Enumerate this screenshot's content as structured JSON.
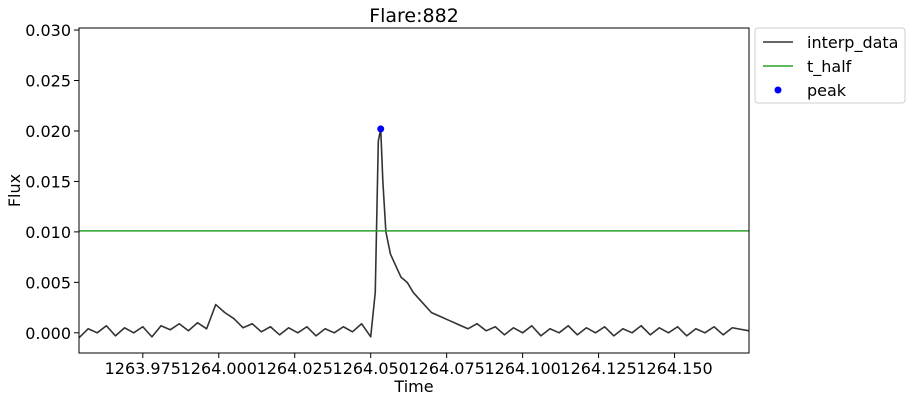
{
  "chart_data": {
    "type": "line",
    "title": "Flare:882",
    "xlabel": "Time",
    "ylabel": "Flux",
    "xlim": [
      1263.954,
      1264.1745
    ],
    "ylim": [
      -0.002,
      0.0302
    ],
    "x_ticks": [
      1263.975,
      1264.0,
      1264.025,
      1264.05,
      1264.075,
      1264.1,
      1264.125,
      1264.15
    ],
    "x_tick_labels": [
      "1263.975",
      "1264.000",
      "1264.025",
      "1264.050",
      "1264.075",
      "1264.100",
      "1264.125",
      "1264.150"
    ],
    "y_ticks": [
      0.0,
      0.005,
      0.01,
      0.015,
      0.02,
      0.025,
      0.03
    ],
    "y_tick_labels": [
      "0.000",
      "0.005",
      "0.010",
      "0.015",
      "0.020",
      "0.025",
      "0.030"
    ],
    "grid": false,
    "legend_placement": "outside-upper-right",
    "series": [
      {
        "name": "interp_data",
        "kind": "line",
        "color": "#333333",
        "points": [
          [
            1263.954,
            -0.0005
          ],
          [
            1263.957,
            0.0004
          ],
          [
            1263.96,
            0.0
          ],
          [
            1263.963,
            0.0007
          ],
          [
            1263.966,
            -0.0003
          ],
          [
            1263.969,
            0.0005
          ],
          [
            1263.972,
            0.0
          ],
          [
            1263.975,
            0.0006
          ],
          [
            1263.978,
            -0.0004
          ],
          [
            1263.981,
            0.0007
          ],
          [
            1263.984,
            0.0003
          ],
          [
            1263.987,
            0.0009
          ],
          [
            1263.99,
            0.0002
          ],
          [
            1263.993,
            0.001
          ],
          [
            1263.996,
            0.0004
          ],
          [
            1263.999,
            0.0028
          ],
          [
            1264.002,
            0.002
          ],
          [
            1264.005,
            0.0014
          ],
          [
            1264.008,
            0.0005
          ],
          [
            1264.011,
            0.0009
          ],
          [
            1264.014,
            0.0001
          ],
          [
            1264.017,
            0.0006
          ],
          [
            1264.02,
            -0.0002
          ],
          [
            1264.023,
            0.0005
          ],
          [
            1264.026,
            0.0
          ],
          [
            1264.029,
            0.0006
          ],
          [
            1264.032,
            -0.0003
          ],
          [
            1264.035,
            0.0004
          ],
          [
            1264.038,
            0.0
          ],
          [
            1264.041,
            0.0006
          ],
          [
            1264.044,
            0.0001
          ],
          [
            1264.047,
            0.0009
          ],
          [
            1264.05,
            -0.0004
          ],
          [
            1264.0515,
            0.004
          ],
          [
            1264.0525,
            0.019
          ],
          [
            1264.0533,
            0.0202
          ],
          [
            1264.054,
            0.015
          ],
          [
            1264.055,
            0.01
          ],
          [
            1264.0565,
            0.0078
          ],
          [
            1264.058,
            0.0068
          ],
          [
            1264.06,
            0.0055
          ],
          [
            1264.062,
            0.005
          ],
          [
            1264.064,
            0.004
          ],
          [
            1264.067,
            0.003
          ],
          [
            1264.07,
            0.002
          ],
          [
            1264.073,
            0.0016
          ],
          [
            1264.076,
            0.0012
          ],
          [
            1264.079,
            0.0008
          ],
          [
            1264.082,
            0.0004
          ],
          [
            1264.085,
            0.0009
          ],
          [
            1264.088,
            0.0002
          ],
          [
            1264.091,
            0.0006
          ],
          [
            1264.094,
            -0.0002
          ],
          [
            1264.097,
            0.0005
          ],
          [
            1264.1,
            0.0
          ],
          [
            1264.103,
            0.0007
          ],
          [
            1264.106,
            -0.0003
          ],
          [
            1264.109,
            0.0004
          ],
          [
            1264.112,
            0.0
          ],
          [
            1264.115,
            0.0007
          ],
          [
            1264.118,
            -0.0002
          ],
          [
            1264.121,
            0.0005
          ],
          [
            1264.124,
            0.0
          ],
          [
            1264.127,
            0.0006
          ],
          [
            1264.13,
            -0.0003
          ],
          [
            1264.133,
            0.0004
          ],
          [
            1264.136,
            0.0
          ],
          [
            1264.139,
            0.0007
          ],
          [
            1264.142,
            -0.0002
          ],
          [
            1264.145,
            0.0005
          ],
          [
            1264.148,
            0.0
          ],
          [
            1264.151,
            0.0006
          ],
          [
            1264.154,
            -0.0003
          ],
          [
            1264.157,
            0.0004
          ],
          [
            1264.16,
            0.0
          ],
          [
            1264.163,
            0.0006
          ],
          [
            1264.166,
            -0.0002
          ],
          [
            1264.169,
            0.0005
          ],
          [
            1264.1745,
            0.0002
          ]
        ]
      },
      {
        "name": "t_half",
        "kind": "hline",
        "color": "#2ca02c",
        "y": 0.0101
      },
      {
        "name": "peak",
        "kind": "scatter",
        "color": "#0000ff",
        "points": [
          [
            1264.0533,
            0.0202
          ]
        ]
      }
    ]
  }
}
